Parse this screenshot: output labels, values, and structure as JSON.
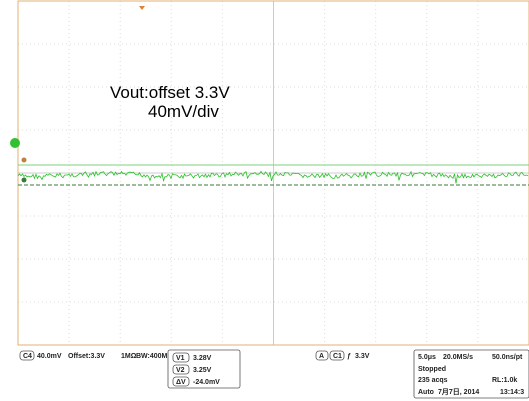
{
  "annotation": {
    "line1": "Vout:offset 3.3V",
    "line2": "40mV/div"
  },
  "channel": {
    "badge": "C4",
    "scale": "40.0mV",
    "offset": "Offset:3.3V",
    "impedance": "1MΩ",
    "bandwidth": "BW:400M"
  },
  "cursors": [
    {
      "label": "V1",
      "value": "3.28V"
    },
    {
      "label": "V2",
      "value": "3.25V"
    },
    {
      "label": "ΔV",
      "value": "-24.0mV"
    }
  ],
  "trigger": {
    "mode": "A",
    "source": "C1",
    "slope": "ƒ",
    "level": "3.3V"
  },
  "timebase": {
    "scale": "5.0μs",
    "rate": "20.0MS/s",
    "resolution": "50.0ns/pt",
    "state": "Stopped",
    "acqs": "235 acqs",
    "record": "RL:1.0k",
    "trigger_mode": "Auto",
    "date": "7月7日, 2014",
    "time": "13:14:3"
  }
}
